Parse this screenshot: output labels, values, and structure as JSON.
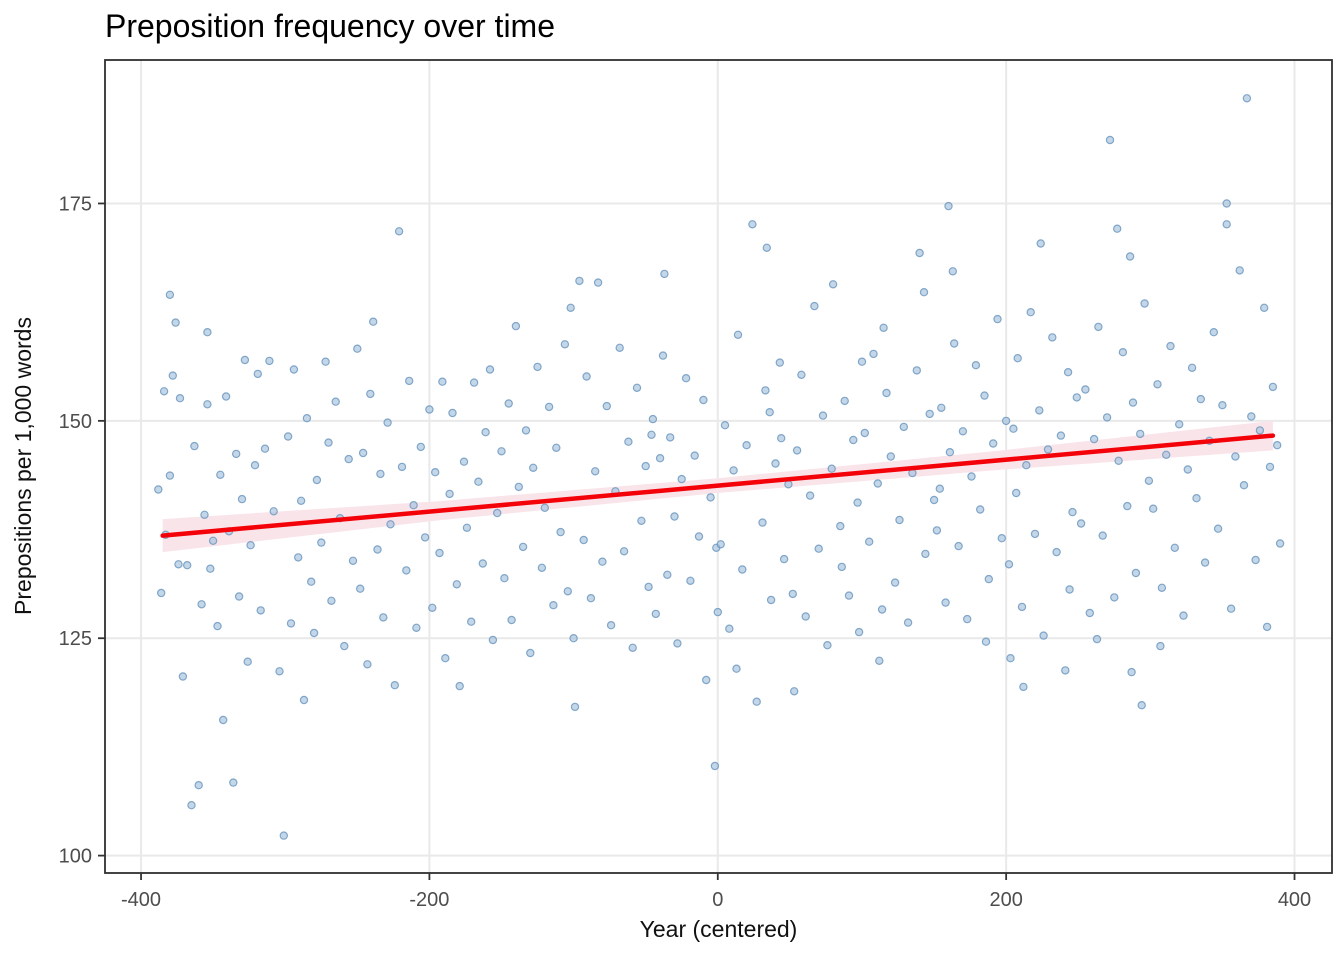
{
  "chart_data": {
    "type": "scatter",
    "title": "Preposition frequency over time",
    "xlabel": "Year (centered)",
    "ylabel": "Prepositions per 1,000 words",
    "x_ticks": [
      -400,
      -200,
      0,
      200,
      400
    ],
    "y_ticks": [
      100,
      125,
      150,
      175
    ],
    "xlim": [
      -425,
      426
    ],
    "ylim": [
      98,
      191.5
    ],
    "grid": "major-only",
    "legend": "none",
    "trend": {
      "type": "linear-fit",
      "x": [
        -385,
        385
      ],
      "y": [
        136.8,
        148.3
      ],
      "ci_x": [
        -385,
        -192,
        0,
        192,
        385
      ],
      "ci_halfwidth": [
        1.9,
        1.1,
        0.85,
        1.1,
        1.7
      ]
    },
    "style": {
      "point_fill": "#9FBFDC",
      "point_stroke": "#6E99BF",
      "point_opacity": 0.62,
      "trend_color": "#F30309",
      "ribbon_color": "#F9E4EA",
      "grid_color": "#E9E9E9",
      "panel_border": "#2F2F2F",
      "tick_color": "#333333",
      "tick_label_color": "#4D4D4D",
      "title_color": "#000000",
      "axis_label_color": "#111111",
      "background": "#FFFFFF"
    },
    "points": [
      [
        -388,
        142.1
      ],
      [
        -386,
        130.2
      ],
      [
        -384,
        153.4
      ],
      [
        -383,
        136.9
      ],
      [
        -380,
        164.5
      ],
      [
        -380,
        143.7
      ],
      [
        -378,
        155.2
      ],
      [
        -376,
        161.3
      ],
      [
        -374,
        133.5
      ],
      [
        -373,
        152.6
      ],
      [
        -371,
        120.6
      ],
      [
        -368,
        133.4
      ],
      [
        -365,
        105.8
      ],
      [
        -363,
        147.1
      ],
      [
        -360,
        108.1
      ],
      [
        -358,
        128.9
      ],
      [
        -356,
        139.2
      ],
      [
        -354,
        160.2
      ],
      [
        -354,
        151.9
      ],
      [
        -352,
        133.0
      ],
      [
        -350,
        136.2
      ],
      [
        -347,
        126.4
      ],
      [
        -345,
        143.8
      ],
      [
        -343,
        115.6
      ],
      [
        -341,
        152.8
      ],
      [
        -339,
        137.3
      ],
      [
        -336,
        108.4
      ],
      [
        -334,
        146.2
      ],
      [
        -332,
        129.8
      ],
      [
        -330,
        141.0
      ],
      [
        -328,
        157.0
      ],
      [
        -326,
        122.3
      ],
      [
        -324,
        135.7
      ],
      [
        -321,
        144.9
      ],
      [
        -319,
        155.4
      ],
      [
        -317,
        128.2
      ],
      [
        -314,
        146.8
      ],
      [
        -311,
        156.9
      ],
      [
        -308,
        139.6
      ],
      [
        -304,
        121.2
      ],
      [
        -301,
        102.3
      ],
      [
        -298,
        148.2
      ],
      [
        -296,
        126.7
      ],
      [
        -294,
        155.9
      ],
      [
        -291,
        134.3
      ],
      [
        -289,
        140.8
      ],
      [
        -287,
        117.9
      ],
      [
        -285,
        150.3
      ],
      [
        -282,
        131.5
      ],
      [
        -280,
        125.6
      ],
      [
        -278,
        143.2
      ],
      [
        -275,
        136.0
      ],
      [
        -272,
        156.8
      ],
      [
        -270,
        147.5
      ],
      [
        -268,
        129.3
      ],
      [
        -265,
        152.2
      ],
      [
        -262,
        138.8
      ],
      [
        -259,
        124.1
      ],
      [
        -256,
        145.6
      ],
      [
        -253,
        133.9
      ],
      [
        -250,
        158.3
      ],
      [
        -248,
        130.7
      ],
      [
        -246,
        146.3
      ],
      [
        -243,
        122.0
      ],
      [
        -241,
        153.1
      ],
      [
        -239,
        161.4
      ],
      [
        -236,
        135.2
      ],
      [
        -234,
        143.9
      ],
      [
        -232,
        127.4
      ],
      [
        -229,
        149.8
      ],
      [
        -227,
        138.1
      ],
      [
        -224,
        119.6
      ],
      [
        -221,
        171.8
      ],
      [
        -219,
        144.7
      ],
      [
        -216,
        132.8
      ],
      [
        -214,
        154.6
      ],
      [
        -211,
        140.3
      ],
      [
        -209,
        126.2
      ],
      [
        -206,
        147.0
      ],
      [
        -203,
        136.6
      ],
      [
        -200,
        151.3
      ],
      [
        -198,
        128.5
      ],
      [
        -196,
        144.1
      ],
      [
        -193,
        134.8
      ],
      [
        -191,
        154.5
      ],
      [
        -189,
        122.7
      ],
      [
        -186,
        141.6
      ],
      [
        -184,
        150.9
      ],
      [
        -181,
        131.2
      ],
      [
        -179,
        119.5
      ],
      [
        -176,
        145.3
      ],
      [
        -174,
        137.7
      ],
      [
        -171,
        126.9
      ],
      [
        -169,
        154.4
      ],
      [
        -166,
        143.0
      ],
      [
        -163,
        133.6
      ],
      [
        -161,
        148.7
      ],
      [
        -158,
        155.9
      ],
      [
        -156,
        124.8
      ],
      [
        -153,
        139.4
      ],
      [
        -150,
        146.5
      ],
      [
        -148,
        131.9
      ],
      [
        -145,
        152.0
      ],
      [
        -143,
        127.1
      ],
      [
        -140,
        160.9
      ],
      [
        -138,
        142.4
      ],
      [
        -135,
        135.5
      ],
      [
        -133,
        148.9
      ],
      [
        -130,
        123.3
      ],
      [
        -128,
        144.6
      ],
      [
        -125,
        156.2
      ],
      [
        -122,
        133.1
      ],
      [
        -120,
        140.0
      ],
      [
        -117,
        151.6
      ],
      [
        -114,
        128.8
      ],
      [
        -112,
        146.9
      ],
      [
        -109,
        137.2
      ],
      [
        -106,
        158.8
      ],
      [
        -104,
        130.4
      ],
      [
        -102,
        163.0
      ],
      [
        -100,
        125.0
      ],
      [
        -99,
        117.1
      ],
      [
        -96,
        166.1
      ],
      [
        -93,
        136.3
      ],
      [
        -91,
        155.1
      ],
      [
        -88,
        129.6
      ],
      [
        -85,
        144.2
      ],
      [
        -83,
        165.9
      ],
      [
        -80,
        133.8
      ],
      [
        -77,
        151.7
      ],
      [
        -74,
        126.5
      ],
      [
        -71,
        141.9
      ],
      [
        -68,
        158.4
      ],
      [
        -65,
        135.0
      ],
      [
        -62,
        147.6
      ],
      [
        -59,
        123.9
      ],
      [
        -56,
        153.8
      ],
      [
        -53,
        138.5
      ],
      [
        -50,
        144.8
      ],
      [
        -48,
        130.9
      ],
      [
        -46,
        148.4
      ],
      [
        -45,
        150.2
      ],
      [
        -43,
        127.8
      ],
      [
        -40,
        145.7
      ],
      [
        -38,
        157.5
      ],
      [
        -37,
        166.9
      ],
      [
        -35,
        132.3
      ],
      [
        -33,
        148.1
      ],
      [
        -30,
        139.0
      ],
      [
        -28,
        124.4
      ],
      [
        -25,
        143.3
      ],
      [
        -22,
        154.9
      ],
      [
        -19,
        131.6
      ],
      [
        -16,
        146.0
      ],
      [
        -13,
        136.7
      ],
      [
        -10,
        152.4
      ],
      [
        -8,
        120.2
      ],
      [
        -5,
        141.2
      ],
      [
        -2,
        110.3
      ],
      [
        -1,
        135.4
      ],
      [
        0,
        128.0
      ],
      [
        2,
        135.8
      ],
      [
        5,
        149.5
      ],
      [
        8,
        126.1
      ],
      [
        11,
        144.3
      ],
      [
        13,
        121.5
      ],
      [
        14,
        159.9
      ],
      [
        17,
        132.9
      ],
      [
        20,
        147.2
      ],
      [
        24,
        172.6
      ],
      [
        27,
        117.7
      ],
      [
        31,
        138.3
      ],
      [
        33,
        153.5
      ],
      [
        34,
        169.9
      ],
      [
        36,
        151.0
      ],
      [
        37,
        129.4
      ],
      [
        40,
        145.1
      ],
      [
        43,
        156.7
      ],
      [
        44,
        148.0
      ],
      [
        46,
        134.1
      ],
      [
        49,
        142.7
      ],
      [
        52,
        130.1
      ],
      [
        53,
        118.9
      ],
      [
        55,
        146.6
      ],
      [
        58,
        155.3
      ],
      [
        61,
        127.5
      ],
      [
        64,
        141.4
      ],
      [
        67,
        163.2
      ],
      [
        70,
        135.3
      ],
      [
        73,
        150.6
      ],
      [
        76,
        124.2
      ],
      [
        79,
        144.5
      ],
      [
        80,
        165.7
      ],
      [
        85,
        137.9
      ],
      [
        86,
        133.2
      ],
      [
        88,
        152.3
      ],
      [
        91,
        129.9
      ],
      [
        94,
        147.8
      ],
      [
        97,
        140.6
      ],
      [
        98,
        125.7
      ],
      [
        100,
        156.8
      ],
      [
        102,
        148.6
      ],
      [
        105,
        136.1
      ],
      [
        108,
        157.7
      ],
      [
        111,
        142.8
      ],
      [
        112,
        122.4
      ],
      [
        114,
        128.3
      ],
      [
        115,
        160.7
      ],
      [
        117,
        153.2
      ],
      [
        120,
        145.9
      ],
      [
        123,
        131.4
      ],
      [
        126,
        138.6
      ],
      [
        129,
        149.3
      ],
      [
        132,
        126.8
      ],
      [
        135,
        144.0
      ],
      [
        138,
        155.8
      ],
      [
        140,
        169.3
      ],
      [
        143,
        164.8
      ],
      [
        144,
        134.7
      ],
      [
        147,
        150.8
      ],
      [
        150,
        140.9
      ],
      [
        160,
        174.7
      ],
      [
        152,
        137.4
      ],
      [
        154,
        142.2
      ],
      [
        155,
        151.5
      ],
      [
        158,
        129.1
      ],
      [
        161,
        146.4
      ],
      [
        163,
        167.2
      ],
      [
        164,
        158.9
      ],
      [
        167,
        135.6
      ],
      [
        170,
        148.8
      ],
      [
        173,
        127.2
      ],
      [
        176,
        143.6
      ],
      [
        179,
        156.4
      ],
      [
        182,
        139.8
      ],
      [
        185,
        152.9
      ],
      [
        186,
        124.6
      ],
      [
        188,
        131.8
      ],
      [
        191,
        147.4
      ],
      [
        194,
        161.7
      ],
      [
        197,
        136.5
      ],
      [
        200,
        150.0
      ],
      [
        202,
        133.5
      ],
      [
        203,
        122.7
      ],
      [
        205,
        149.1
      ],
      [
        207,
        141.7
      ],
      [
        208,
        157.2
      ],
      [
        211,
        128.6
      ],
      [
        212,
        119.4
      ],
      [
        214,
        144.9
      ],
      [
        217,
        162.5
      ],
      [
        220,
        137.0
      ],
      [
        223,
        151.2
      ],
      [
        224,
        170.4
      ],
      [
        226,
        125.3
      ],
      [
        229,
        146.7
      ],
      [
        232,
        159.6
      ],
      [
        235,
        134.9
      ],
      [
        238,
        148.3
      ],
      [
        241,
        121.3
      ],
      [
        243,
        155.6
      ],
      [
        244,
        130.6
      ],
      [
        246,
        139.5
      ],
      [
        249,
        152.7
      ],
      [
        252,
        138.2
      ],
      [
        255,
        153.6
      ],
      [
        258,
        127.9
      ],
      [
        261,
        147.9
      ],
      [
        263,
        124.9
      ],
      [
        264,
        160.8
      ],
      [
        267,
        136.8
      ],
      [
        270,
        150.4
      ],
      [
        272,
        182.3
      ],
      [
        275,
        129.7
      ],
      [
        277,
        172.1
      ],
      [
        278,
        145.4
      ],
      [
        281,
        157.9
      ],
      [
        284,
        140.2
      ],
      [
        286,
        168.9
      ],
      [
        287,
        121.1
      ],
      [
        288,
        152.1
      ],
      [
        290,
        132.5
      ],
      [
        293,
        148.5
      ],
      [
        294,
        117.3
      ],
      [
        296,
        163.5
      ],
      [
        299,
        143.1
      ],
      [
        302,
        139.9
      ],
      [
        305,
        154.2
      ],
      [
        307,
        124.1
      ],
      [
        308,
        130.8
      ],
      [
        311,
        146.1
      ],
      [
        314,
        158.6
      ],
      [
        317,
        135.4
      ],
      [
        320,
        149.6
      ],
      [
        323,
        127.6
      ],
      [
        326,
        144.4
      ],
      [
        329,
        156.1
      ],
      [
        332,
        141.1
      ],
      [
        335,
        152.5
      ],
      [
        338,
        133.7
      ],
      [
        341,
        147.7
      ],
      [
        344,
        160.2
      ],
      [
        347,
        137.6
      ],
      [
        350,
        151.8
      ],
      [
        353,
        175.0
      ],
      [
        353,
        172.6
      ],
      [
        356,
        128.4
      ],
      [
        359,
        145.9
      ],
      [
        362,
        167.3
      ],
      [
        365,
        142.6
      ],
      [
        367,
        187.1
      ],
      [
        370,
        150.5
      ],
      [
        373,
        134.0
      ],
      [
        376,
        148.9
      ],
      [
        379,
        163.0
      ],
      [
        381,
        126.3
      ],
      [
        383,
        144.7
      ],
      [
        385,
        153.9
      ],
      [
        388,
        147.2
      ],
      [
        390,
        135.9
      ]
    ]
  }
}
